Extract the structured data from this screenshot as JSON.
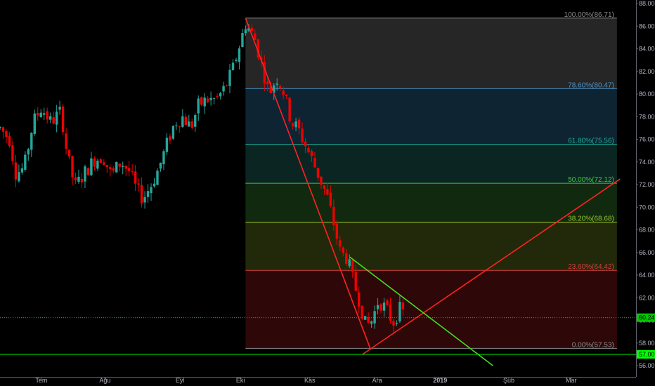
{
  "chart_data": {
    "type": "candlestick",
    "ylim": [
      56,
      88
    ],
    "xlim": [
      0,
      100
    ],
    "colors": {
      "background": "#000000",
      "up": "#26a69a",
      "down": "#ef0000",
      "axis_text": "#b2b5be",
      "price_line": "#00c800",
      "support_line": "#00ff00"
    },
    "x_tick_labels": [
      {
        "label": "Tem",
        "x": 6.5
      },
      {
        "label": "Ağu",
        "x": 16.5
      },
      {
        "label": "Eyl",
        "x": 28.3
      },
      {
        "label": "Eki",
        "x": 37.8
      },
      {
        "label": "Kas",
        "x": 48.7
      },
      {
        "label": "Ara",
        "x": 59.3
      },
      {
        "label": "2019",
        "x": 69.2
      },
      {
        "label": "Şub",
        "x": 80.0
      },
      {
        "label": "Mar",
        "x": 89.8
      }
    ],
    "y_tick_labels": [
      "56.00",
      "58.00",
      "60.00",
      "62.00",
      "64.00",
      "66.00",
      "68.00",
      "70.00",
      "72.00",
      "74.00",
      "76.00",
      "78.00",
      "80.00",
      "82.00",
      "84.00",
      "86.00",
      "88.00"
    ],
    "price_markers": [
      {
        "label": "60.24",
        "value": 60.24,
        "color": "#00c800",
        "style": "dotted"
      },
      {
        "label": "57.00",
        "value": 57.0,
        "color": "#00ff00",
        "style": "solid"
      }
    ],
    "fib_levels": [
      {
        "label": "100.00%(86.71)",
        "value": 86.71,
        "color": "#8a8a8a"
      },
      {
        "label": "78.60%(80.47)",
        "value": 80.47,
        "color": "#4a90c8"
      },
      {
        "label": "61.80%(75.56)",
        "value": 75.56,
        "color": "#1fae9a"
      },
      {
        "label": "50.00%(72.12)",
        "value": 72.12,
        "color": "#3ec83e"
      },
      {
        "label": "38.20%(68.68)",
        "value": 68.68,
        "color": "#9ac830"
      },
      {
        "label": "23.60%(64.42)",
        "value": 64.42,
        "color": "#d04040"
      },
      {
        "label": "0.00%(57.53)",
        "value": 57.53,
        "color": "#8a8a8a"
      }
    ],
    "fib_zones": [
      {
        "from": 86.71,
        "to": 80.47,
        "color": "#262626"
      },
      {
        "from": 80.47,
        "to": 75.56,
        "color": "#0e2433"
      },
      {
        "from": 75.56,
        "to": 72.12,
        "color": "#0b2622"
      },
      {
        "from": 72.12,
        "to": 68.68,
        "color": "#112a0f"
      },
      {
        "from": 68.68,
        "to": 64.42,
        "color": "#22290a"
      },
      {
        "from": 64.42,
        "to": 57.53,
        "color": "#2e0808"
      }
    ],
    "fib_x_range": [
      38.6,
      97.0
    ],
    "trend_lines": [
      {
        "color": "#ff2222",
        "x1": 38.6,
        "y1": 86.71,
        "x2": 58.2,
        "y2": 57.53
      },
      {
        "color": "#ff2222",
        "x1": 57.0,
        "y1": 57.0,
        "x2": 97.5,
        "y2": 72.5
      },
      {
        "color": "#44dd22",
        "x1": 55.0,
        "y1": 65.6,
        "x2": 77.5,
        "y2": 56.0
      }
    ],
    "candle_anchors": [
      [
        0.0,
        77.0
      ],
      [
        1.5,
        76.0
      ],
      [
        2.5,
        73.0
      ],
      [
        3.8,
        73.5
      ],
      [
        5.2,
        77.5
      ],
      [
        6.5,
        78.8
      ],
      [
        8.0,
        77.5
      ],
      [
        9.6,
        78.5
      ],
      [
        10.6,
        74.5
      ],
      [
        11.8,
        71.8
      ],
      [
        13.0,
        72.8
      ],
      [
        14.8,
        74.2
      ],
      [
        16.2,
        74.5
      ],
      [
        17.5,
        72.8
      ],
      [
        19.0,
        74.0
      ],
      [
        20.3,
        73.2
      ],
      [
        21.5,
        71.5
      ],
      [
        22.5,
        70.8
      ],
      [
        23.8,
        72.0
      ],
      [
        25.0,
        73.5
      ],
      [
        26.5,
        76.0
      ],
      [
        27.5,
        77.5
      ],
      [
        28.8,
        78.0
      ],
      [
        30.0,
        77.0
      ],
      [
        31.2,
        79.0
      ],
      [
        32.5,
        79.5
      ],
      [
        34.0,
        79.5
      ],
      [
        35.3,
        80.5
      ],
      [
        36.5,
        82.0
      ],
      [
        37.5,
        84.0
      ],
      [
        38.6,
        86.2
      ],
      [
        40.0,
        85.0
      ],
      [
        41.2,
        82.5
      ],
      [
        42.3,
        80.0
      ],
      [
        43.5,
        81.5
      ],
      [
        44.6,
        80.2
      ],
      [
        45.8,
        77.5
      ],
      [
        46.8,
        77.0
      ],
      [
        48.0,
        75.5
      ],
      [
        49.2,
        74.0
      ],
      [
        50.3,
        72.5
      ],
      [
        51.4,
        71.0
      ],
      [
        52.5,
        68.5
      ],
      [
        53.5,
        66.0
      ],
      [
        54.6,
        65.5
      ],
      [
        55.5,
        63.5
      ],
      [
        56.5,
        61.8
      ],
      [
        57.5,
        59.5
      ],
      [
        58.5,
        60.0
      ],
      [
        59.5,
        61.8
      ],
      [
        60.7,
        61.0
      ],
      [
        61.8,
        59.8
      ],
      [
        62.8,
        61.0
      ],
      [
        63.7,
        60.5
      ]
    ]
  }
}
